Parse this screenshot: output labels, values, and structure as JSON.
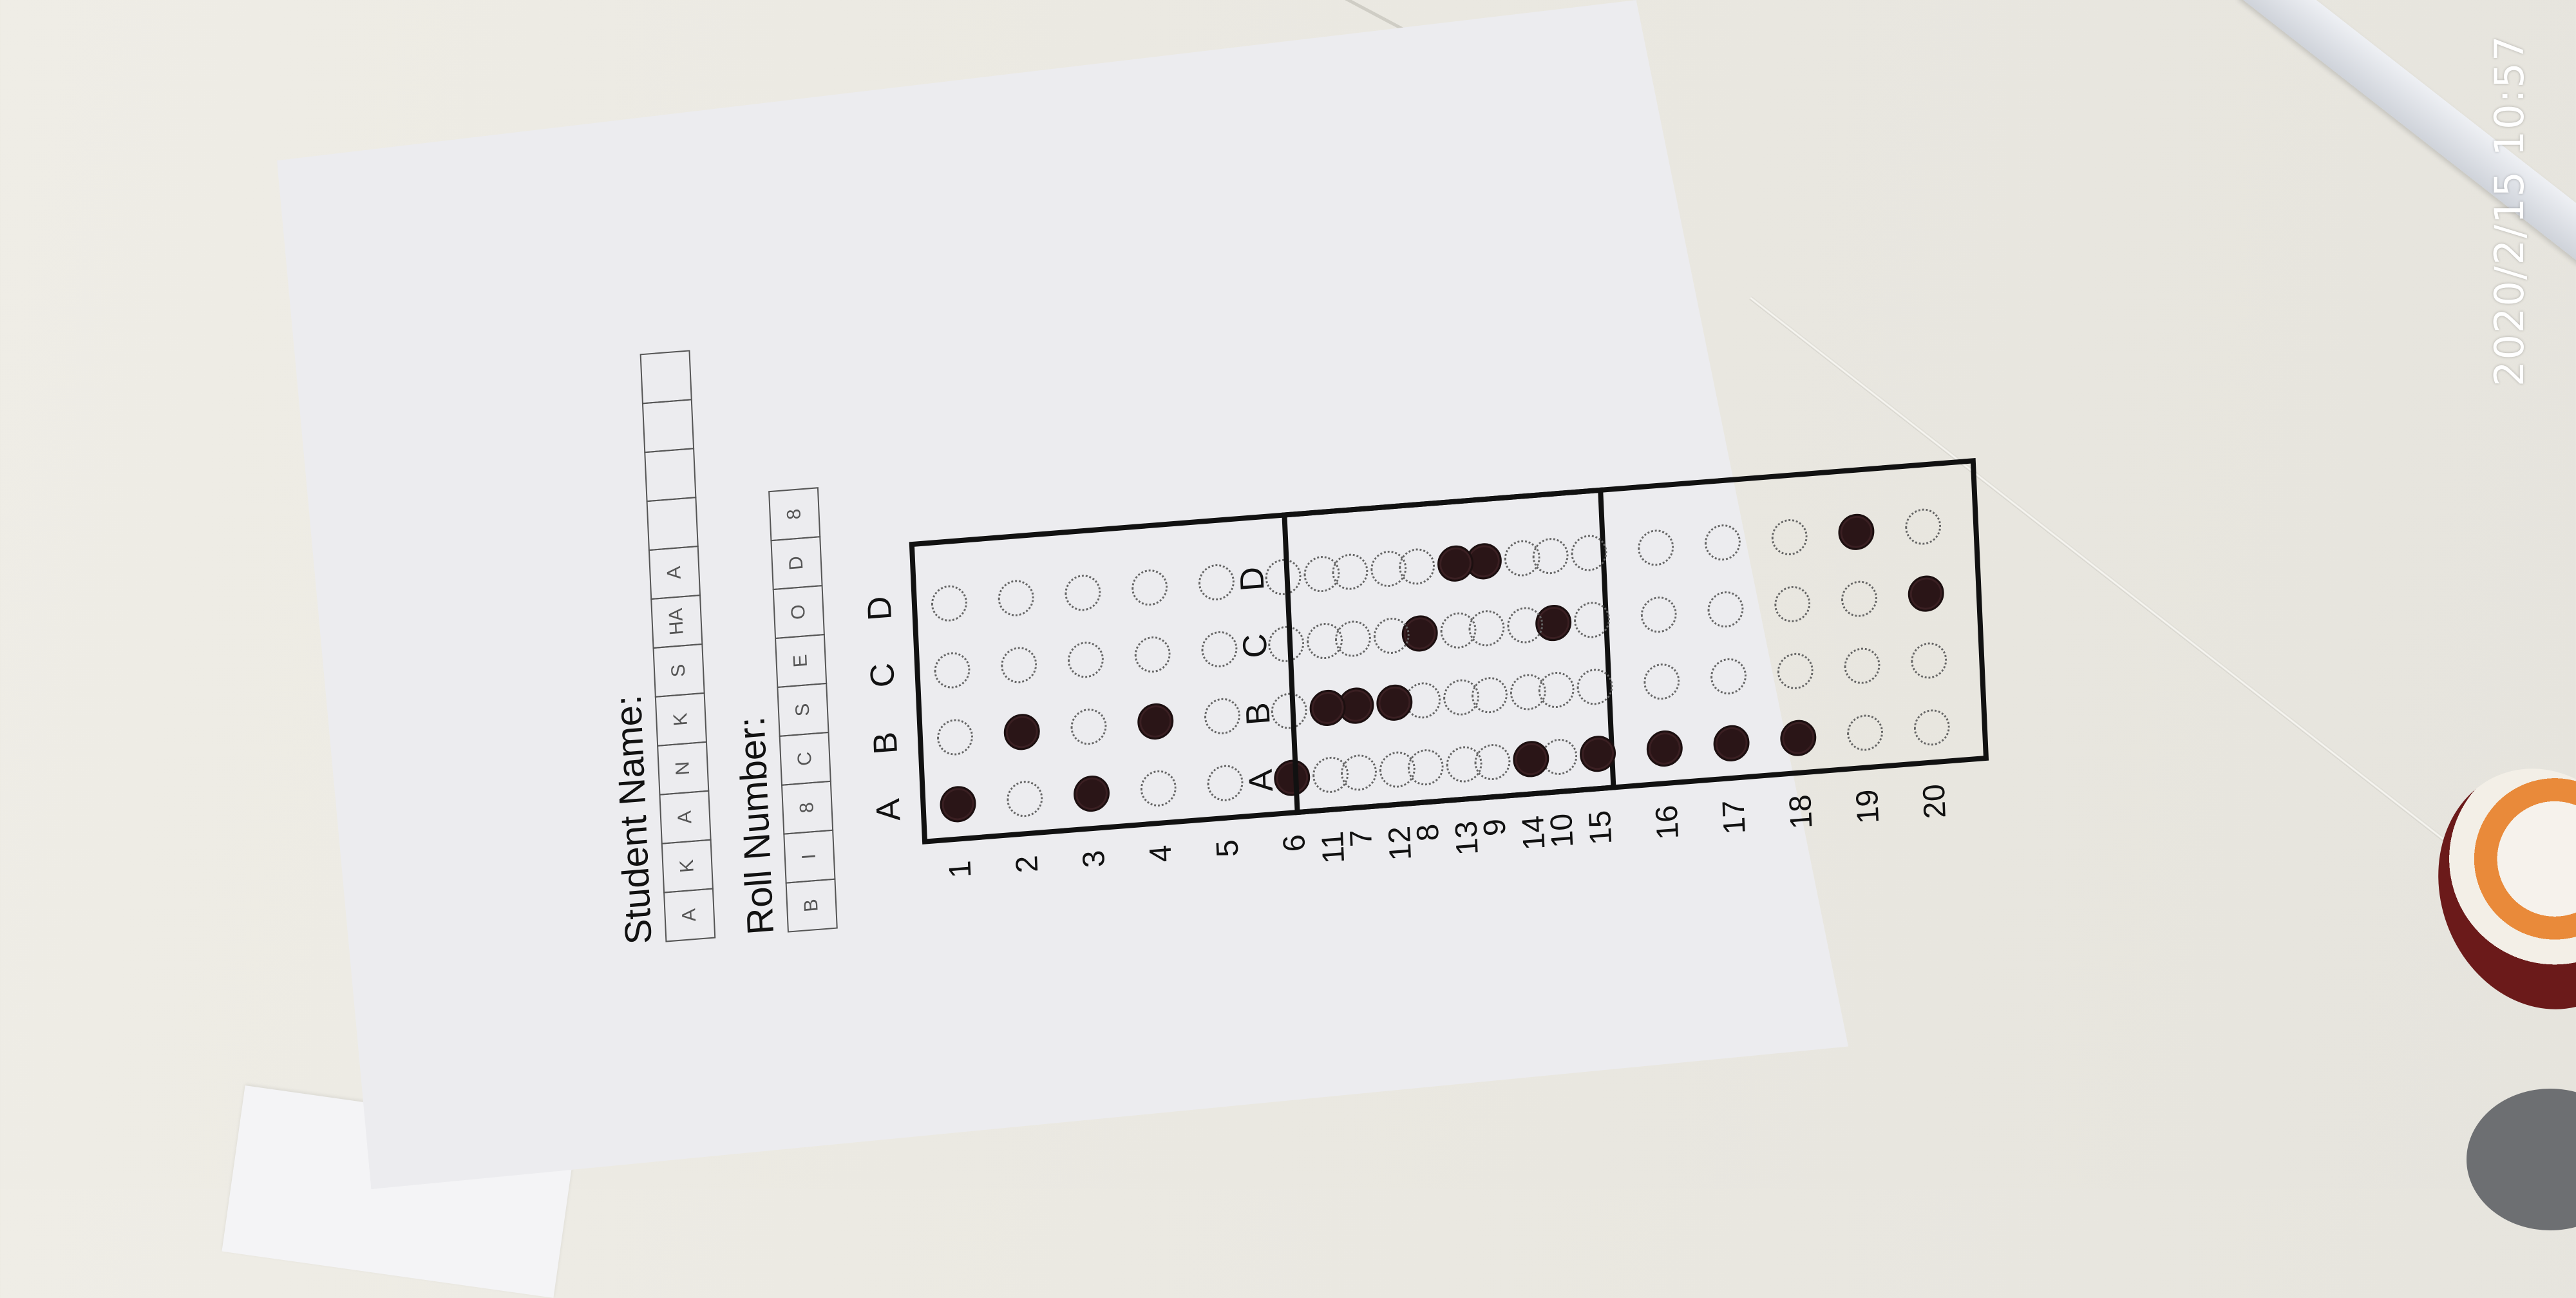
{
  "form": {
    "student_name_label": "Student Name:",
    "student_name_boxes": [
      "A",
      "K",
      "A",
      "N",
      "K",
      "S",
      "HA",
      "A",
      "",
      "",
      "",
      ""
    ],
    "roll_number_label": "Roll Number:",
    "roll_number_boxes": [
      "B",
      "I",
      "8",
      "C",
      "S",
      "E",
      "O",
      "D",
      "8"
    ],
    "choice_headers": [
      "A",
      "B",
      "C",
      "D"
    ],
    "panel1_rows": [
      "1",
      "2",
      "3",
      "4",
      "5",
      "6",
      "7",
      "8",
      "9",
      "10"
    ],
    "panel2_rows": [
      "11",
      "12",
      "13",
      "14",
      "15",
      "16",
      "17",
      "18",
      "19",
      "20"
    ],
    "answers": {
      "1": "A",
      "2": "B",
      "3": "A",
      "4": "B",
      "5": "",
      "6": "A",
      "7": "B",
      "8": "C",
      "9": "D",
      "10": "C",
      "11": "B",
      "12": "B",
      "13": "D",
      "14": "A",
      "15": "A",
      "16": "A",
      "17": "A",
      "18": "A",
      "19": "D",
      "20": "C"
    }
  },
  "timestamp": "2020/2/15 10:57"
}
